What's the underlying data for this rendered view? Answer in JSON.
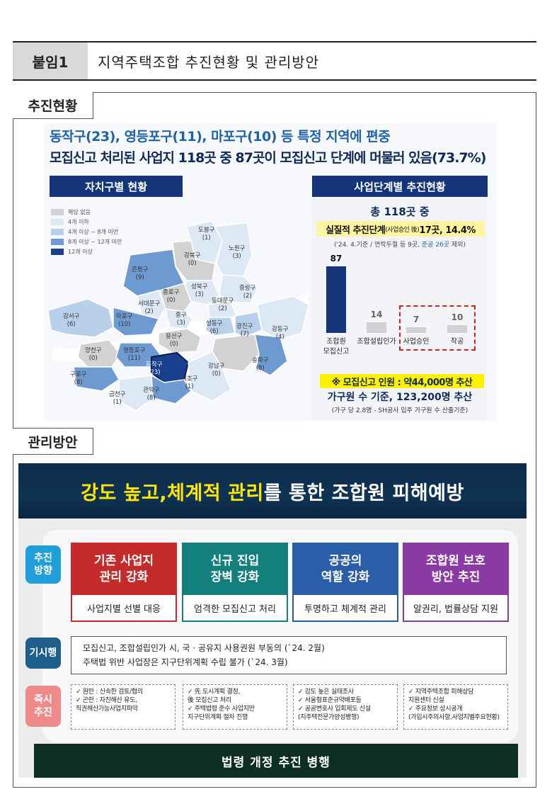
{
  "header": {
    "tag": "붙임1",
    "title": "지역주택조합 추진현황 및 관리방안"
  },
  "status": {
    "section_title": "추진현황",
    "headline1": "동작구(23), 영등포구(11), 마포구(10) 등 특정 지역에 편중",
    "headline2": "모집신고 처리된 사업지 118곳 중 87곳이 모집신고 단계에 머물러 있음(73.7%)",
    "map": {
      "title": "자치구별 현황",
      "legend": [
        {
          "label": "해당 없음",
          "color": "#d2d2d2"
        },
        {
          "label": "4개 이하",
          "color": "#dce8f4"
        },
        {
          "label": "4개 이상 ~ 8개 미만",
          "color": "#b8d0ea"
        },
        {
          "label": "8개 이상 ~ 12개 미만",
          "color": "#6d9ad0"
        },
        {
          "label": "12개 이상",
          "color": "#1a3f8f"
        }
      ],
      "districts": [
        {
          "name": "도봉구",
          "count": "(1)"
        },
        {
          "name": "노원구",
          "count": "(3)"
        },
        {
          "name": "강북구",
          "count": "(0)"
        },
        {
          "name": "은평구",
          "count": "(9)"
        },
        {
          "name": "성북구",
          "count": "(3)"
        },
        {
          "name": "중랑구",
          "count": "(2)"
        },
        {
          "name": "종로구",
          "count": "(0)"
        },
        {
          "name": "서대문구",
          "count": "(2)"
        },
        {
          "name": "동대문구",
          "count": "(2)"
        },
        {
          "name": "강서구",
          "count": "(6)"
        },
        {
          "name": "마포구",
          "count": "(10)"
        },
        {
          "name": "중구",
          "count": "(3)"
        },
        {
          "name": "성동구",
          "count": "(6)"
        },
        {
          "name": "광진구",
          "count": "(7)"
        },
        {
          "name": "강동구",
          "count": "(4)"
        },
        {
          "name": "용산구",
          "count": "(0)"
        },
        {
          "name": "양천구",
          "count": "(0)"
        },
        {
          "name": "영등포구",
          "count": "(11)"
        },
        {
          "name": "송파구",
          "count": "(8)"
        },
        {
          "name": "구로구",
          "count": "(8)"
        },
        {
          "name": "동작구",
          "count": "(23)"
        },
        {
          "name": "강남구",
          "count": "(0)"
        },
        {
          "name": "서초구",
          "count": "(1)"
        },
        {
          "name": "관악구",
          "count": "(8)"
        },
        {
          "name": "금천구",
          "count": "(1)"
        }
      ]
    },
    "stage": {
      "title": "사업단계별 추진현황",
      "total": "총 118곳 중",
      "actual_prefix": "실질적 추진단계",
      "actual_paren": "(사업승인 後)",
      "actual_value": " 17곳, 14.4%",
      "note_prefix": "('24. 4.기준 / 연락두절 등 9곳, ",
      "note_blue": "준공 26곳",
      "note_suffix": " 제외)",
      "bars": [
        {
          "label": "조합원\n모집신고",
          "value": 87
        },
        {
          "label": "조합설립인가",
          "value": 14
        },
        {
          "label": "사업승인",
          "value": 7
        },
        {
          "label": "착공",
          "value": 10
        }
      ],
      "recruit_text": "※ 모집신고 인원 : 약44,000명 추산",
      "household_text": "가구원 수 기준, 123,200명 추산",
      "household_note": "(가구 당 2.8명 - SH공사 입주 가구원 수 산출기준)"
    }
  },
  "management": {
    "section_title": "관리방안",
    "banner_hl1": "강도 높고, ",
    "banner_hl2": "체계적 관리",
    "banner_rest": "를 통한 조합원 피해예방",
    "direction_label": "추진\n방향",
    "directions": [
      {
        "head": "기존 사업지\n관리 강화",
        "foot": "사업지별 선별 대응",
        "color": "#c62b2b"
      },
      {
        "head": "신규 진입\n장벽 강화",
        "foot": "엄격한 모집신고 처리",
        "color": "#13807e"
      },
      {
        "head": "공공의\n역할 강화",
        "foot": "투명하고 체계적 관리",
        "color": "#2a5ea8"
      },
      {
        "head": "조합원 보호\n방안 추진",
        "foot": "알권리, 법률상담 지원",
        "color": "#8a3aa3"
      }
    ],
    "gisi_label": "기시행",
    "gisi_lines": [
      "모집신고, 조합설립인가 시, 국 · 공유지 사용권원 부동의 (`24. 2월)",
      "주택법 위반 사업장은 지구단위계획 수립 불가 (`24. 3월)"
    ],
    "immediate_label": "즉시\n추진",
    "immediate": [
      [
        "✓ 원만 : 신속한 검토/협의",
        "✓ 곤란 : 자진해산 유도,",
        "   직권해산가능사업지파악"
      ],
      [
        "✓ 先 도시계획 결정,",
        "   後 모집신고 처리",
        "✓ 주택법령 준수 사업지만",
        "   지구단위계획 절차 진행"
      ],
      [
        "✓ 강도 높은 실태조사",
        "✓ 서울형표준규약배포등",
        "✓ 공공변호사 입회제도 신설",
        "   (지주택전문가양성병행)"
      ],
      [
        "✓ 지역주택조합 피해상담",
        "   지원센터 신설",
        "✓ 주요정보 상시공개",
        "(가입시주의사항,사업지별주요현황)"
      ]
    ],
    "law_banner": "법령 개정 추진 병행"
  }
}
